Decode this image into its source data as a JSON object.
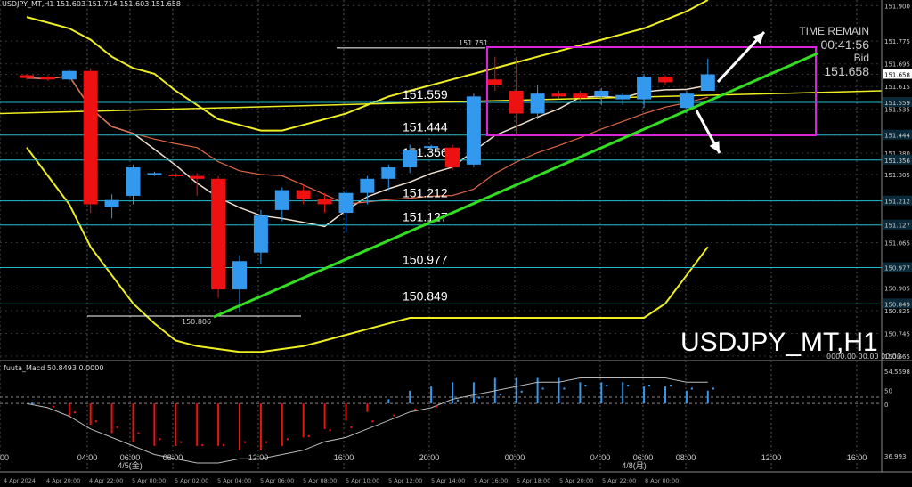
{
  "header": {
    "symbol_info": "USDJPY_MT,H1  151.603 151.714 151.603 151.658"
  },
  "watermark": "USDJPY_MT,H1",
  "time_remain": {
    "label": "TIME REMAIN",
    "value": "00:41:56",
    "bid_label": "Bid",
    "bid_value": "151.658"
  },
  "macd": {
    "title": "fuuta_Macd 50.8493  0.0000",
    "zeroes": "0000.00 00.00 00.00"
  },
  "colors": {
    "bull": "#3399ee",
    "bear": "#ee1111",
    "trend": "#33dd22",
    "box": "#dd22dd",
    "band": "#eeee22",
    "level": "#22bbcc",
    "arrow": "#ffffff"
  },
  "chart_data": {
    "type": "candlestick",
    "ylim": [
      150.665,
      151.92
    ],
    "price_axis_labels": [
      "151.900",
      "151.775",
      "151.695",
      "151.658",
      "151.615",
      "151.559",
      "151.535",
      "151.444",
      "151.380",
      "151.356",
      "151.305",
      "151.212",
      "151.127",
      "151.065",
      "150.977",
      "150.905",
      "150.849",
      "150.825",
      "150.745",
      "150.665"
    ],
    "time_labels": [
      "00",
      "04:00",
      "06:00",
      "08:00",
      "12:00",
      "16:00",
      "20:00",
      "00:00",
      "04:00",
      "06:00",
      "08:00",
      "12:00",
      "16:00"
    ],
    "date_labels": [
      "4/5(金)",
      "4/8(月)"
    ],
    "bottom_date_labels": [
      "4 Apr 2024",
      "4 Apr 20:00",
      "4 Apr 22:00",
      "5 Apr 00:00",
      "5 Apr 02:00",
      "5 Apr 04:00",
      "5 Apr 06:00",
      "5 Apr 08:00",
      "5 Apr 10:00",
      "5 Apr 12:00",
      "5 Apr 14:00",
      "5 Apr 16:00",
      "5 Apr 18:00",
      "5 Apr 20:00",
      "5 Apr 22:00",
      "8 Apr 00:00"
    ],
    "levels": [
      {
        "label": "151.559",
        "value": 151.559
      },
      {
        "label": "151.444",
        "value": 151.444
      },
      {
        "label": "151.356",
        "value": 151.356
      },
      {
        "label": "151.212",
        "value": 151.212
      },
      {
        "label": "151.127",
        "value": 151.127
      },
      {
        "label": "150.977",
        "value": 150.977
      },
      {
        "label": "150.849",
        "value": 150.849
      }
    ],
    "annotations": [
      {
        "label": "151.751",
        "value": 151.751
      },
      {
        "label": "150.806",
        "value": 150.806
      }
    ],
    "candles": [
      {
        "o": 151.655,
        "h": 151.66,
        "l": 151.64,
        "c": 151.645
      },
      {
        "o": 151.65,
        "h": 151.655,
        "l": 151.635,
        "c": 151.64
      },
      {
        "o": 151.64,
        "h": 151.675,
        "l": 151.63,
        "c": 151.67
      },
      {
        "o": 151.67,
        "h": 151.68,
        "l": 151.17,
        "c": 151.2
      },
      {
        "o": 151.19,
        "h": 151.235,
        "l": 151.15,
        "c": 151.215
      },
      {
        "o": 151.23,
        "h": 151.34,
        "l": 151.2,
        "c": 151.33
      },
      {
        "o": 151.305,
        "h": 151.315,
        "l": 151.3,
        "c": 151.31
      },
      {
        "o": 151.305,
        "h": 151.31,
        "l": 151.295,
        "c": 151.3
      },
      {
        "o": 151.3,
        "h": 151.31,
        "l": 151.23,
        "c": 151.29
      },
      {
        "o": 151.29,
        "h": 151.3,
        "l": 150.87,
        "c": 150.9
      },
      {
        "o": 150.9,
        "h": 151.02,
        "l": 150.82,
        "c": 151.0
      },
      {
        "o": 151.03,
        "h": 151.18,
        "l": 150.99,
        "c": 151.16
      },
      {
        "o": 151.18,
        "h": 151.26,
        "l": 151.14,
        "c": 151.25
      },
      {
        "o": 151.25,
        "h": 151.27,
        "l": 151.2,
        "c": 151.22
      },
      {
        "o": 151.22,
        "h": 151.24,
        "l": 151.17,
        "c": 151.2
      },
      {
        "o": 151.17,
        "h": 151.25,
        "l": 151.1,
        "c": 151.24
      },
      {
        "o": 151.24,
        "h": 151.3,
        "l": 151.2,
        "c": 151.29
      },
      {
        "o": 151.29,
        "h": 151.34,
        "l": 151.25,
        "c": 151.33
      },
      {
        "o": 151.33,
        "h": 151.41,
        "l": 151.31,
        "c": 151.39
      },
      {
        "o": 151.4,
        "h": 151.41,
        "l": 151.39,
        "c": 151.405
      },
      {
        "o": 151.4,
        "h": 151.41,
        "l": 151.32,
        "c": 151.33
      },
      {
        "o": 151.34,
        "h": 151.59,
        "l": 151.33,
        "c": 151.58
      },
      {
        "o": 151.64,
        "h": 151.72,
        "l": 151.6,
        "c": 151.62
      },
      {
        "o": 151.6,
        "h": 151.72,
        "l": 151.44,
        "c": 151.52
      },
      {
        "o": 151.52,
        "h": 151.62,
        "l": 151.5,
        "c": 151.59
      },
      {
        "o": 151.59,
        "h": 151.6,
        "l": 151.575,
        "c": 151.58
      },
      {
        "o": 151.59,
        "h": 151.6,
        "l": 151.56,
        "c": 151.575
      },
      {
        "o": 151.58,
        "h": 151.61,
        "l": 151.55,
        "c": 151.6
      },
      {
        "o": 151.57,
        "h": 151.59,
        "l": 151.55,
        "c": 151.585
      },
      {
        "o": 151.57,
        "h": 151.66,
        "l": 151.54,
        "c": 151.65
      },
      {
        "o": 151.65,
        "h": 151.655,
        "l": 151.62,
        "c": 151.63
      },
      {
        "o": 151.54,
        "h": 151.6,
        "l": 151.52,
        "c": 151.59
      },
      {
        "o": 151.6,
        "h": 151.714,
        "l": 151.6,
        "c": 151.658
      }
    ],
    "macd_ylim": [
      36.993,
      54.5598
    ],
    "macd_axis_labels": [
      "54.5598",
      "50",
      "0",
      "36.993"
    ],
    "macd_hist": [
      0,
      0,
      -3,
      -5,
      -7,
      -9,
      -10,
      -10,
      -10,
      -10,
      -11,
      -11,
      -10,
      -8,
      -6,
      -4,
      -2,
      1,
      3,
      4,
      5,
      5,
      6,
      6,
      6,
      6,
      5,
      5,
      5,
      4,
      4,
      3,
      3
    ],
    "macd_signal": [
      0,
      -1,
      -3,
      -6,
      -8,
      -10,
      -12,
      -13,
      -14,
      -14,
      -13,
      -13,
      -12,
      -11,
      -9,
      -8,
      -6,
      -4,
      -2,
      -1,
      1,
      2,
      3,
      4,
      5,
      5,
      6,
      6,
      6,
      6,
      6,
      5,
      5
    ]
  }
}
